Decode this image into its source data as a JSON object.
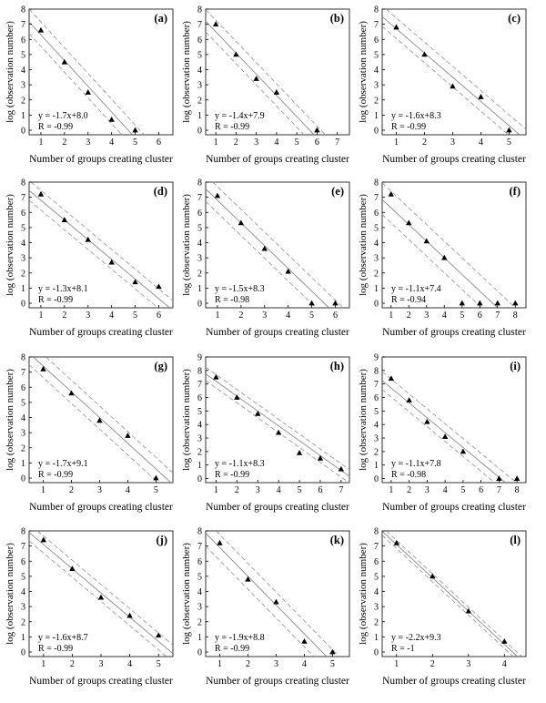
{
  "figure": {
    "ylabel": "log (observation number)",
    "xlabel": "Number of groups creating cluster"
  },
  "chart_data": [
    {
      "type": "scatter",
      "panel": "(a)",
      "xticks": [
        1,
        2,
        3,
        4,
        5,
        6
      ],
      "yticks": [
        0,
        1,
        2,
        3,
        4,
        5,
        6,
        7,
        8
      ],
      "xlim": [
        0.5,
        6.6
      ],
      "ylim": [
        -0.3,
        8.0
      ],
      "x": [
        1,
        2,
        3,
        4,
        5
      ],
      "y": [
        6.6,
        4.5,
        2.5,
        0.7,
        0.0
      ],
      "fit": {
        "slope": -1.7,
        "intercept": 8.0
      },
      "ci": {
        "top_dx": 0.5,
        "bot_dx": -0.45
      },
      "equation": "y = -1.7x+8.0",
      "r": "R = -0.99",
      "xlabel": "Number of groups creating cluster",
      "ylabel": "log (observation number)"
    },
    {
      "type": "scatter",
      "panel": "(b)",
      "xticks": [
        1,
        2,
        3,
        4,
        5,
        6,
        7
      ],
      "yticks": [
        0,
        1,
        2,
        3,
        4,
        5,
        6,
        7,
        8
      ],
      "xlim": [
        0.5,
        7.6
      ],
      "ylim": [
        -0.3,
        8.0
      ],
      "x": [
        1,
        2,
        3,
        4,
        6
      ],
      "y": [
        7.0,
        5.0,
        3.4,
        2.5,
        0.0
      ],
      "fit": {
        "slope": -1.4,
        "intercept": 7.9
      },
      "ci": {
        "top_dx": 0.55,
        "bot_dx": -0.5
      },
      "equation": "y = -1.4x+7.9",
      "r": "R = -0.99",
      "xlabel": "Number of groups creating cluster",
      "ylabel": "log (observation number)"
    },
    {
      "type": "scatter",
      "panel": "(c)",
      "xticks": [
        1,
        2,
        3,
        4,
        5
      ],
      "yticks": [
        0,
        1,
        2,
        3,
        4,
        5,
        6,
        7,
        8
      ],
      "xlim": [
        0.5,
        5.6
      ],
      "ylim": [
        -0.3,
        8.0
      ],
      "x": [
        1,
        2,
        3,
        4,
        5
      ],
      "y": [
        6.8,
        5.0,
        2.9,
        2.2,
        0.0
      ],
      "fit": {
        "slope": -1.6,
        "intercept": 8.3
      },
      "ci": {
        "top_dx": 0.45,
        "bot_dx": -0.4
      },
      "equation": "y = -1.6x+8.3",
      "r": "R = -0.99",
      "xlabel": "Number of groups creating cluster",
      "ylabel": "log (observation number)"
    },
    {
      "type": "scatter",
      "panel": "(d)",
      "xticks": [
        1,
        2,
        3,
        4,
        5,
        6
      ],
      "yticks": [
        0,
        1,
        2,
        3,
        4,
        5,
        6,
        7,
        8
      ],
      "xlim": [
        0.5,
        6.6
      ],
      "ylim": [
        -0.3,
        8.0
      ],
      "x": [
        1,
        2,
        3,
        4,
        5,
        6
      ],
      "y": [
        7.2,
        5.5,
        4.2,
        2.7,
        1.4,
        1.1
      ],
      "fit": {
        "slope": -1.3,
        "intercept": 8.1
      },
      "ci": {
        "top_dx": 0.5,
        "bot_dx": -0.5
      },
      "equation": "y = -1.3x+8.1",
      "r": "R = -0.99",
      "xlabel": "Number of groups creating cluster",
      "ylabel": "log (observation number)"
    },
    {
      "type": "scatter",
      "panel": "(e)",
      "xticks": [
        1,
        2,
        3,
        4,
        5,
        6
      ],
      "yticks": [
        0,
        1,
        2,
        3,
        4,
        5,
        6,
        7,
        8
      ],
      "xlim": [
        0.5,
        6.6
      ],
      "ylim": [
        -0.3,
        8.0
      ],
      "x": [
        1,
        2,
        3,
        4,
        5,
        6
      ],
      "y": [
        7.1,
        5.3,
        3.6,
        2.1,
        0.0,
        0.0
      ],
      "fit": {
        "slope": -1.5,
        "intercept": 8.3
      },
      "ci": {
        "top_dx": 0.6,
        "bot_dx": -0.55
      },
      "equation": "y = -1.5x+8.3",
      "r": "R = -0.98",
      "xlabel": "Number of groups creating cluster",
      "ylabel": "log (observation number)"
    },
    {
      "type": "scatter",
      "panel": "(f)",
      "xticks": [
        1,
        2,
        3,
        4,
        5,
        6,
        7,
        8
      ],
      "yticks": [
        0,
        1,
        2,
        3,
        4,
        5,
        6,
        7,
        8
      ],
      "xlim": [
        0.5,
        8.6
      ],
      "ylim": [
        -0.3,
        8.0
      ],
      "x": [
        1,
        2,
        3,
        4,
        5,
        6,
        7,
        8
      ],
      "y": [
        7.2,
        5.3,
        4.1,
        3.0,
        0.0,
        0.0,
        0.0,
        0.0
      ],
      "fit": {
        "slope": -1.1,
        "intercept": 7.4
      },
      "ci": {
        "top_dx": 1.0,
        "bot_dx": -0.9
      },
      "equation": "y = -1.1x+7.4",
      "r": "R = -0.94",
      "xlabel": "Number of groups creating cluster",
      "ylabel": "log (observation number)"
    },
    {
      "type": "scatter",
      "panel": "(g)",
      "xticks": [
        1,
        2,
        3,
        4,
        5
      ],
      "yticks": [
        0,
        1,
        2,
        3,
        4,
        5,
        6,
        7,
        8
      ],
      "xlim": [
        0.5,
        5.6
      ],
      "ylim": [
        -0.3,
        8.0
      ],
      "x": [
        1,
        2,
        3,
        4,
        5
      ],
      "y": [
        7.2,
        5.6,
        3.8,
        2.8,
        0.0
      ],
      "fit": {
        "slope": -1.7,
        "intercept": 9.1
      },
      "ci": {
        "top_dx": 0.45,
        "bot_dx": -0.45
      },
      "equation": "y = -1.7x+9.1",
      "r": "R = -0.99",
      "xlabel": "Number of groups creating cluster",
      "ylabel": "log (observation number)"
    },
    {
      "type": "scatter",
      "panel": "(h)",
      "xticks": [
        1,
        2,
        3,
        4,
        5,
        6,
        7
      ],
      "yticks": [
        0,
        1,
        2,
        3,
        4,
        5,
        6,
        7,
        8,
        9
      ],
      "xlim": [
        0.5,
        7.4
      ],
      "ylim": [
        -0.3,
        9.0
      ],
      "x": [
        1,
        2,
        3,
        4,
        5,
        6,
        7
      ],
      "y": [
        7.5,
        6.0,
        4.8,
        3.4,
        1.9,
        1.5,
        0.7
      ],
      "fit": {
        "slope": -1.1,
        "intercept": 8.3
      },
      "ci": {
        "top_dx": 0.45,
        "bot_dx": -0.45
      },
      "equation": "y = -1.1x+8.3",
      "r": "R = -0.99",
      "xlabel": "Number of groups creating cluster",
      "ylabel": "log (observation number)"
    },
    {
      "type": "scatter",
      "panel": "(i)",
      "xticks": [
        1,
        2,
        3,
        4,
        5,
        6,
        7,
        8
      ],
      "yticks": [
        0,
        1,
        2,
        3,
        4,
        5,
        6,
        7,
        8,
        9
      ],
      "xlim": [
        0.5,
        8.5
      ],
      "ylim": [
        -0.3,
        9.0
      ],
      "x": [
        1,
        2,
        3,
        4,
        5,
        7,
        8
      ],
      "y": [
        7.4,
        5.8,
        4.2,
        3.1,
        2.0,
        0.0,
        0.0
      ],
      "fit": {
        "slope": -1.1,
        "intercept": 7.8
      },
      "ci": {
        "top_dx": 0.6,
        "bot_dx": -0.6
      },
      "equation": "y = -1.1x+7.8",
      "r": "R = -0.98",
      "xlabel": "Number of groups creating cluster",
      "ylabel": "log (observation number)"
    },
    {
      "type": "scatter",
      "panel": "(j)",
      "xticks": [
        1,
        2,
        3,
        4,
        5
      ],
      "yticks": [
        0,
        1,
        2,
        3,
        4,
        5,
        6,
        7,
        8
      ],
      "xlim": [
        0.5,
        5.5
      ],
      "ylim": [
        -0.3,
        8.0
      ],
      "x": [
        1,
        2,
        3,
        4,
        5
      ],
      "y": [
        7.4,
        5.5,
        3.6,
        2.4,
        1.1
      ],
      "fit": {
        "slope": -1.6,
        "intercept": 8.7
      },
      "ci": {
        "top_dx": 0.35,
        "bot_dx": -0.35
      },
      "equation": "y = -1.6x+8.7",
      "r": "R = -0.99",
      "xlabel": "Number of groups creating cluster",
      "ylabel": "log (observation number)"
    },
    {
      "type": "scatter",
      "panel": "(k)",
      "xticks": [
        1,
        2,
        3,
        4,
        5
      ],
      "yticks": [
        0,
        1,
        2,
        3,
        4,
        5,
        6,
        7,
        8
      ],
      "xlim": [
        0.5,
        5.6
      ],
      "ylim": [
        -0.3,
        8.0
      ],
      "x": [
        1,
        2,
        3,
        4,
        5
      ],
      "y": [
        7.2,
        4.8,
        3.3,
        0.7,
        0.0
      ],
      "fit": {
        "slope": -1.9,
        "intercept": 8.8
      },
      "ci": {
        "top_dx": 0.45,
        "bot_dx": -0.45
      },
      "equation": "y = -1.9x+8.8",
      "r": "R = -0.99",
      "xlabel": "Number of groups creating cluster",
      "ylabel": "log (observation number)"
    },
    {
      "type": "scatter",
      "panel": "(l)",
      "xticks": [
        1,
        2,
        3,
        4
      ],
      "yticks": [
        0,
        1,
        2,
        3,
        4,
        5,
        6,
        7,
        8
      ],
      "xlim": [
        0.6,
        4.6
      ],
      "ylim": [
        -0.3,
        8.0
      ],
      "x": [
        1,
        2,
        3,
        4
      ],
      "y": [
        7.2,
        5.0,
        2.7,
        0.7
      ],
      "fit": {
        "slope": -2.2,
        "intercept": 9.3
      },
      "ci": {
        "top_dx": 0.12,
        "bot_dx": -0.12
      },
      "equation": "y = -2.2x+9.3",
      "r": "R = -1",
      "xlabel": "Number of groups creating cluster",
      "ylabel": "log (observation number)"
    }
  ]
}
